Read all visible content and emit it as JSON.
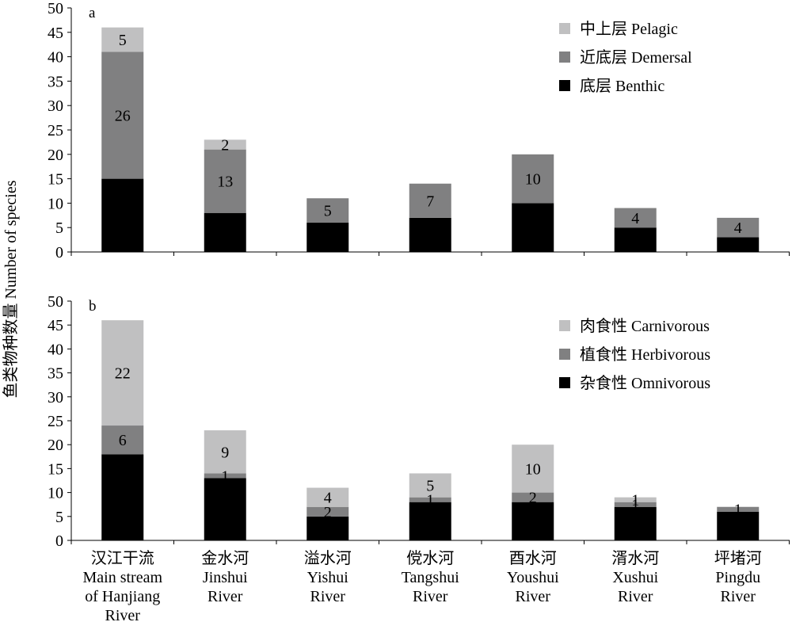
{
  "ylabel": "鱼类物种数量 Number of species",
  "x_categories": [
    {
      "zh": "汉江干流",
      "en": [
        "Main stream",
        "of Hanjiang",
        "River"
      ]
    },
    {
      "zh": "金水河",
      "en": [
        "Jinshui",
        "River"
      ]
    },
    {
      "zh": "溢水河",
      "en": [
        "Yishui",
        "River"
      ]
    },
    {
      "zh": "傥水河",
      "en": [
        "Tangshui",
        "River"
      ]
    },
    {
      "zh": "酉水河",
      "en": [
        "Youshui",
        "River"
      ]
    },
    {
      "zh": "湑水河",
      "en": [
        "Xushui",
        "River"
      ]
    },
    {
      "zh": "坪堵河",
      "en": [
        "Pingdu",
        "River"
      ]
    }
  ],
  "colors": {
    "light": "#c0c0c1",
    "mid": "#808081",
    "dark": "#000000"
  },
  "chart_data": [
    {
      "type": "bar",
      "stacked": true,
      "panel_label": "a",
      "categories": [
        "汉江干流",
        "金水河",
        "溢水河",
        "傥水河",
        "酉水河",
        "湑水河",
        "坪堵河"
      ],
      "ylim": [
        0,
        50
      ],
      "yticks": [
        0,
        5,
        10,
        15,
        20,
        25,
        30,
        35,
        40,
        45,
        50
      ],
      "legend_position": "top-right",
      "series": [
        {
          "name": "底层 Benthic",
          "color": "#000000",
          "label_color": "#ffffff",
          "values": [
            15,
            8,
            6,
            7,
            10,
            5,
            3
          ]
        },
        {
          "name": "近底层 Demersal",
          "color": "#808081",
          "label_color": "#000000",
          "values": [
            26,
            13,
            5,
            7,
            10,
            4,
            4
          ]
        },
        {
          "name": "中上层 Pelagic",
          "color": "#c0c0c1",
          "label_color": "#000000",
          "values": [
            5,
            2,
            0,
            0,
            0,
            0,
            0
          ]
        }
      ],
      "legend_order": [
        2,
        1,
        0
      ]
    },
    {
      "type": "bar",
      "stacked": true,
      "panel_label": "b",
      "categories": [
        "汉江干流",
        "金水河",
        "溢水河",
        "傥水河",
        "酉水河",
        "湑水河",
        "坪堵河"
      ],
      "ylim": [
        0,
        50
      ],
      "yticks": [
        0,
        5,
        10,
        15,
        20,
        25,
        30,
        35,
        40,
        45,
        50
      ],
      "legend_position": "top-right",
      "series": [
        {
          "name": "杂食性 Omnivorous",
          "color": "#000000",
          "label_color": "#ffffff",
          "values": [
            18,
            13,
            5,
            8,
            8,
            7,
            6
          ]
        },
        {
          "name": "植食性 Herbivorous",
          "color": "#808081",
          "label_color": "#000000",
          "values": [
            6,
            1,
            2,
            1,
            2,
            1,
            1
          ]
        },
        {
          "name": "肉食性 Carnivorous",
          "color": "#c0c0c1",
          "label_color": "#000000",
          "values": [
            22,
            9,
            4,
            5,
            10,
            1,
            0
          ]
        }
      ],
      "legend_order": [
        2,
        1,
        0
      ]
    }
  ]
}
